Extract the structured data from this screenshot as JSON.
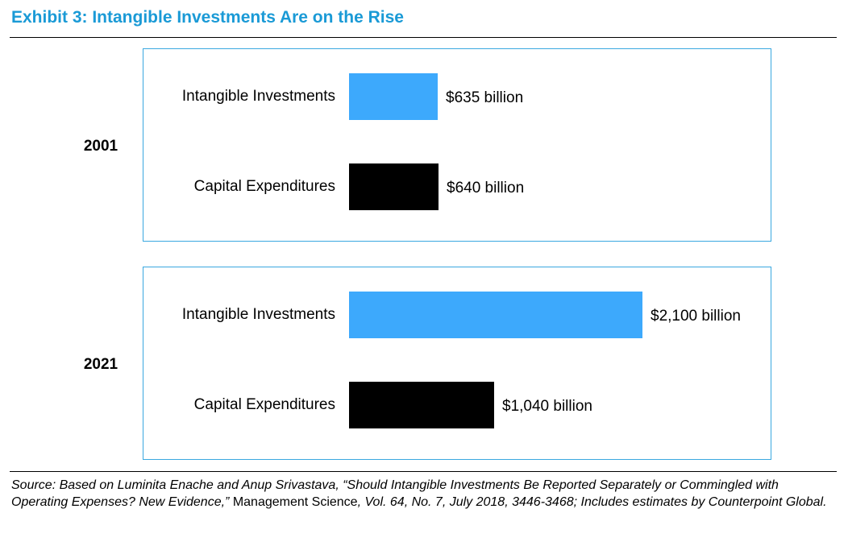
{
  "title": "Exhibit 3: Intangible Investments Are on the Rise",
  "colors": {
    "accent": "#1a9ad6",
    "panel_border": "#3aa8e0",
    "intangible": "#3da9fc",
    "capex": "#000000"
  },
  "chart_data": {
    "type": "bar",
    "orientation": "horizontal",
    "groups": [
      {
        "year": "2001",
        "bars": [
          {
            "category": "Intangible Investments",
            "value": 635,
            "label": "$635 billion",
            "color": "#3da9fc"
          },
          {
            "category": "Capital Expenditures",
            "value": 640,
            "label": "$640 billion",
            "color": "#000000"
          }
        ]
      },
      {
        "year": "2021",
        "bars": [
          {
            "category": "Intangible Investments",
            "value": 2100,
            "label": "$2,100 billion",
            "color": "#3da9fc"
          },
          {
            "category": "Capital Expenditures",
            "value": 1040,
            "label": "$1,040 billion",
            "color": "#000000"
          }
        ]
      }
    ]
  },
  "source": {
    "part1": "Source: Based on Luminita Enache and Anup Srivastava, “Should Intangible Investments Be Reported Separately or Commingled with Operating Expenses? New Evidence,”",
    "part2": " Management Science",
    "part3": ", Vol. 64, No. 7, July 2018, 3446-3468; Includes estimates by Counterpoint Global."
  }
}
